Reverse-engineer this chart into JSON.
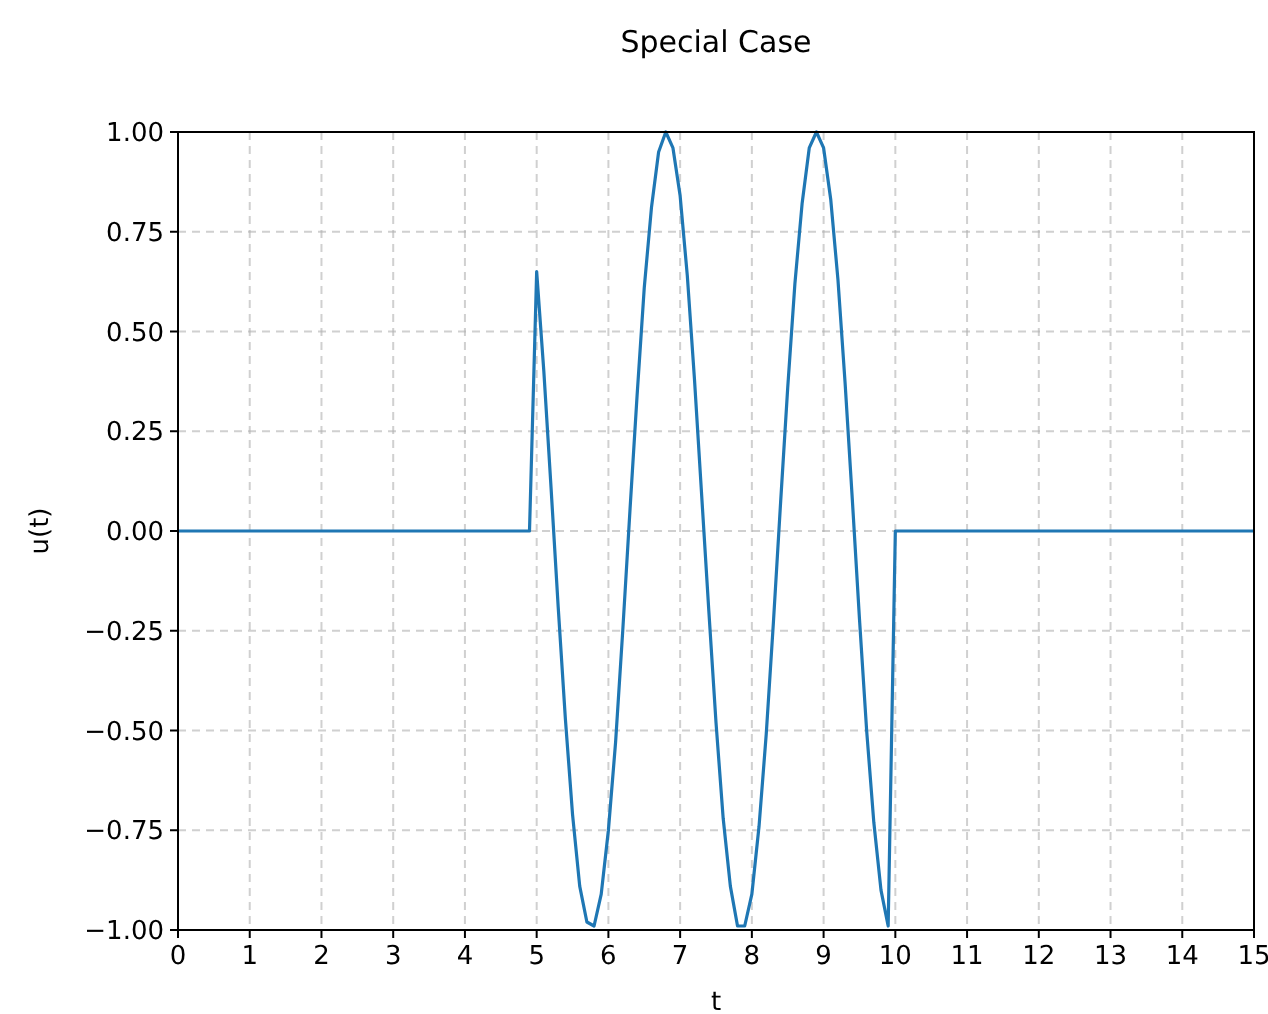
{
  "chart_data": {
    "type": "line",
    "title": "Special Case",
    "xlabel": "t",
    "ylabel": "u(t)",
    "xlim": [
      0,
      15
    ],
    "ylim": [
      -1,
      1
    ],
    "xticks": [
      0,
      1,
      2,
      3,
      4,
      5,
      6,
      7,
      8,
      9,
      10,
      11,
      12,
      13,
      14,
      15
    ],
    "yticks": [
      {
        "value": -1,
        "label": "−1.00"
      },
      {
        "value": -0.75,
        "label": "−0.75"
      },
      {
        "value": -0.5,
        "label": "−0.50"
      },
      {
        "value": -0.25,
        "label": "−0.25"
      },
      {
        "value": 0,
        "label": "0.00"
      },
      {
        "value": 0.25,
        "label": "0.25"
      },
      {
        "value": 0.5,
        "label": "0.50"
      },
      {
        "value": 0.75,
        "label": "0.75"
      },
      {
        "value": 1,
        "label": "1.00"
      }
    ],
    "grid": true,
    "line_style": "solid",
    "series": [
      {
        "color": "#1f77b4",
        "x": [
          0,
          4.9,
          5.0,
          5.1,
          5.2,
          5.3,
          5.4,
          5.5,
          5.6,
          5.7,
          5.8,
          5.9,
          6.0,
          6.1,
          6.2,
          6.3,
          6.4,
          6.5,
          6.6,
          6.7,
          6.8,
          6.9,
          7.0,
          7.1,
          7.2,
          7.3,
          7.4,
          7.5,
          7.6,
          7.7,
          7.8,
          7.9,
          8.0,
          8.1,
          8.2,
          8.3,
          8.4,
          8.5,
          8.6,
          8.7,
          8.8,
          8.9,
          9.0,
          9.1,
          9.2,
          9.3,
          9.4,
          9.5,
          9.6,
          9.7,
          9.8,
          9.9,
          10.0,
          15
        ],
        "values": [
          0,
          0,
          0.65,
          0.4,
          0.11,
          -0.19,
          -0.47,
          -0.71,
          -0.89,
          -0.98,
          -0.99,
          -0.91,
          -0.75,
          -0.53,
          -0.25,
          0.05,
          0.34,
          0.61,
          0.81,
          0.95,
          1.0,
          0.96,
          0.84,
          0.64,
          0.38,
          0.09,
          -0.2,
          -0.48,
          -0.72,
          -0.89,
          -0.99,
          -0.99,
          -0.91,
          -0.74,
          -0.51,
          -0.23,
          0.07,
          0.36,
          0.62,
          0.82,
          0.96,
          1.0,
          0.96,
          0.83,
          0.63,
          0.37,
          0.08,
          -0.22,
          -0.5,
          -0.73,
          -0.9,
          -0.99,
          0,
          0
        ]
      }
    ]
  }
}
